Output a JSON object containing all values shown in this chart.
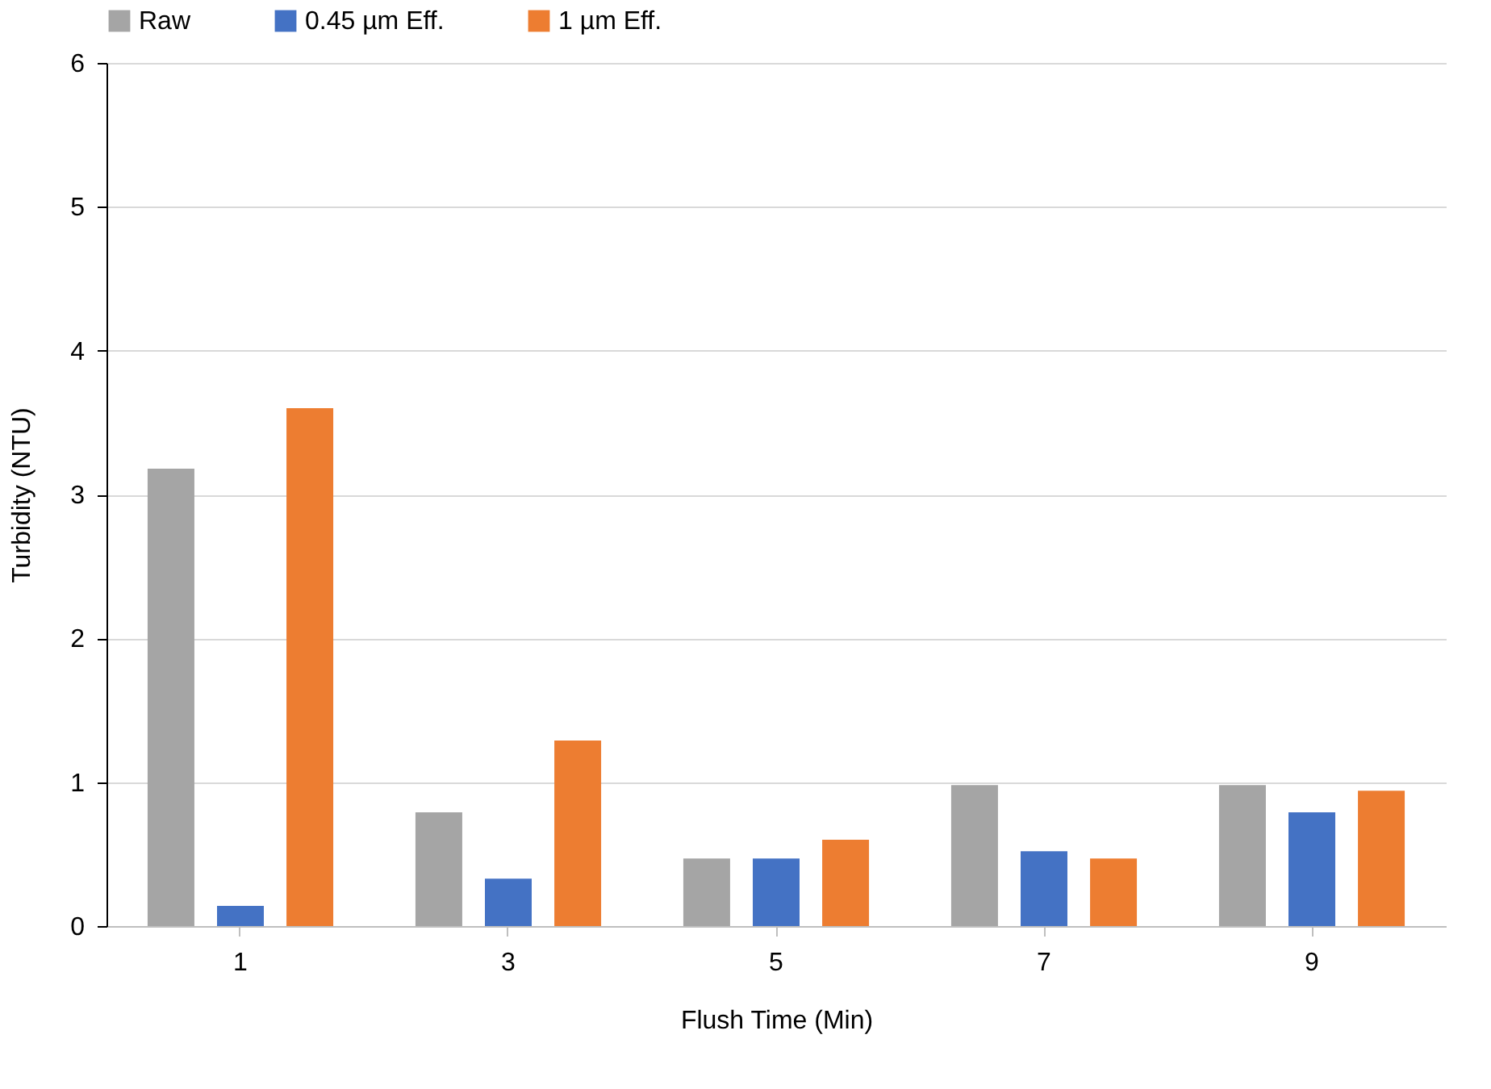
{
  "chart_data": {
    "type": "bar",
    "xlabel": "Flush Time (Min)",
    "ylabel": "Turbidity (NTU)",
    "categories": [
      "1",
      "3",
      "5",
      "7",
      "9"
    ],
    "series": [
      {
        "name": "Raw",
        "color": "#a5a5a5",
        "values": [
          3.18,
          0.79,
          0.47,
          0.98,
          0.98
        ]
      },
      {
        "name": "0.45 µm Eff.",
        "color": "#4472c4",
        "values": [
          0.14,
          0.33,
          0.47,
          0.52,
          0.79
        ]
      },
      {
        "name": "1 µm Eff.",
        "color": "#ed7d31",
        "values": [
          3.6,
          1.29,
          0.6,
          0.47,
          0.94
        ]
      }
    ],
    "ylim": [
      0,
      6
    ],
    "yticks": [
      0,
      1,
      2,
      3,
      4,
      5,
      6
    ],
    "grid": "y",
    "legend": "top"
  }
}
